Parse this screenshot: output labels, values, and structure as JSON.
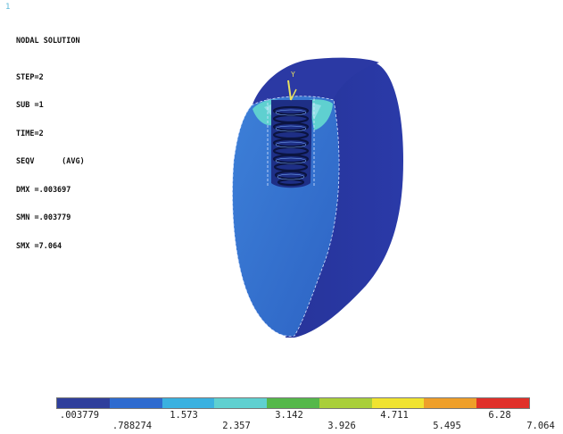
{
  "window_number": "1",
  "info": {
    "title": "NODAL SOLUTION",
    "lines": [
      "STEP=2",
      "SUB =1",
      "TIME=2",
      "SEQV      (AVG)",
      "DMX =.003697",
      "SMN =.003779",
      "SMX =7.064"
    ]
  },
  "model": {
    "subject": "bone block with threaded implant, equivalent stress contour",
    "triad_label": "Y"
  },
  "legend": {
    "colors": [
      "#2f3f9c",
      "#2e6bcf",
      "#3ab1e0",
      "#5fd0d0",
      "#55b84a",
      "#a9cf3a",
      "#f0e330",
      "#ee9f2a",
      "#e0302a"
    ],
    "labels_upper": [
      ".003779",
      "1.573",
      "3.142",
      "4.711",
      "6.28"
    ],
    "labels_lower": [
      ".788274",
      "2.357",
      "3.926",
      "5.495",
      "7.064"
    ]
  }
}
